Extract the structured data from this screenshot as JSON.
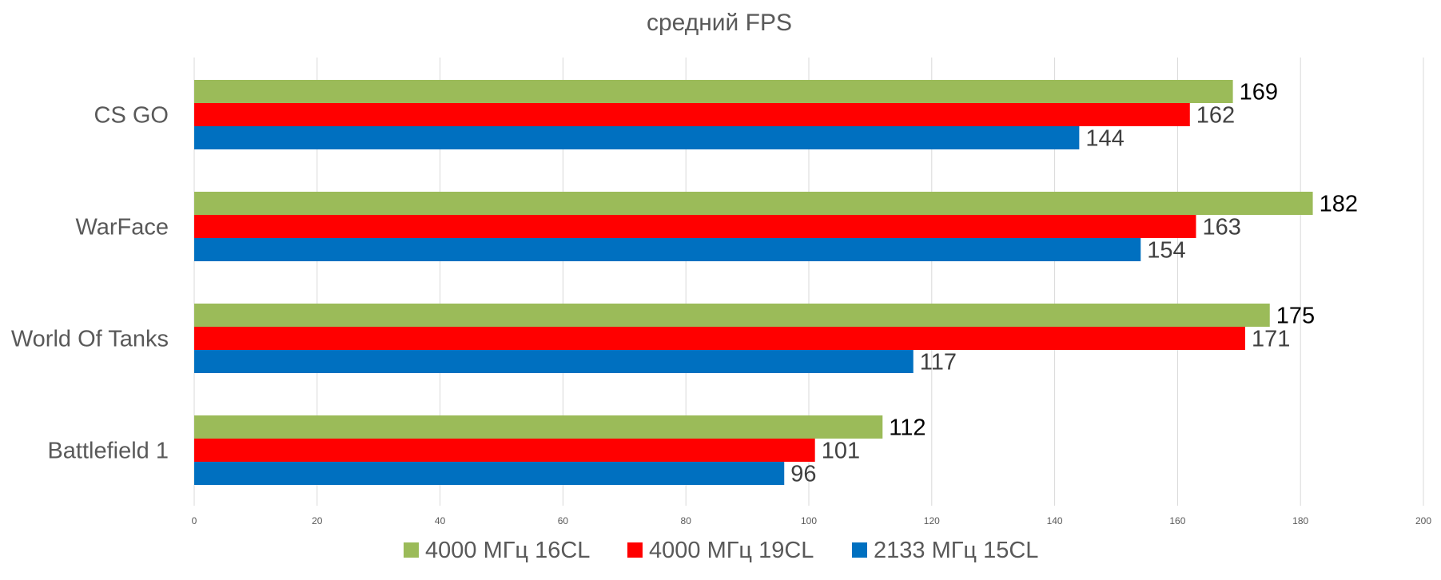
{
  "chart_data": {
    "type": "bar",
    "orientation": "horizontal",
    "title": "средний FPS",
    "xlabel": "",
    "ylabel": "",
    "categories": [
      "CS GO",
      "WarFace",
      "World Of Tanks",
      "Battlefield 1"
    ],
    "series": [
      {
        "name": "4000 МГц 16CL",
        "color": "#9bbb59",
        "label_color": "#000000",
        "values": [
          169,
          182,
          175,
          112
        ]
      },
      {
        "name": "4000 МГц 19CL",
        "color": "#ff0000",
        "label_color": "#404040",
        "values": [
          162,
          163,
          171,
          101
        ]
      },
      {
        "name": "2133 МГц 15CL",
        "color": "#0070c0",
        "label_color": "#404040",
        "values": [
          144,
          154,
          117,
          96
        ]
      }
    ],
    "xlim": [
      0,
      200
    ],
    "ticks": [
      0,
      20,
      40,
      60,
      80,
      100,
      120,
      140,
      160,
      180,
      200
    ],
    "grid": true,
    "legend_position": "bottom"
  }
}
